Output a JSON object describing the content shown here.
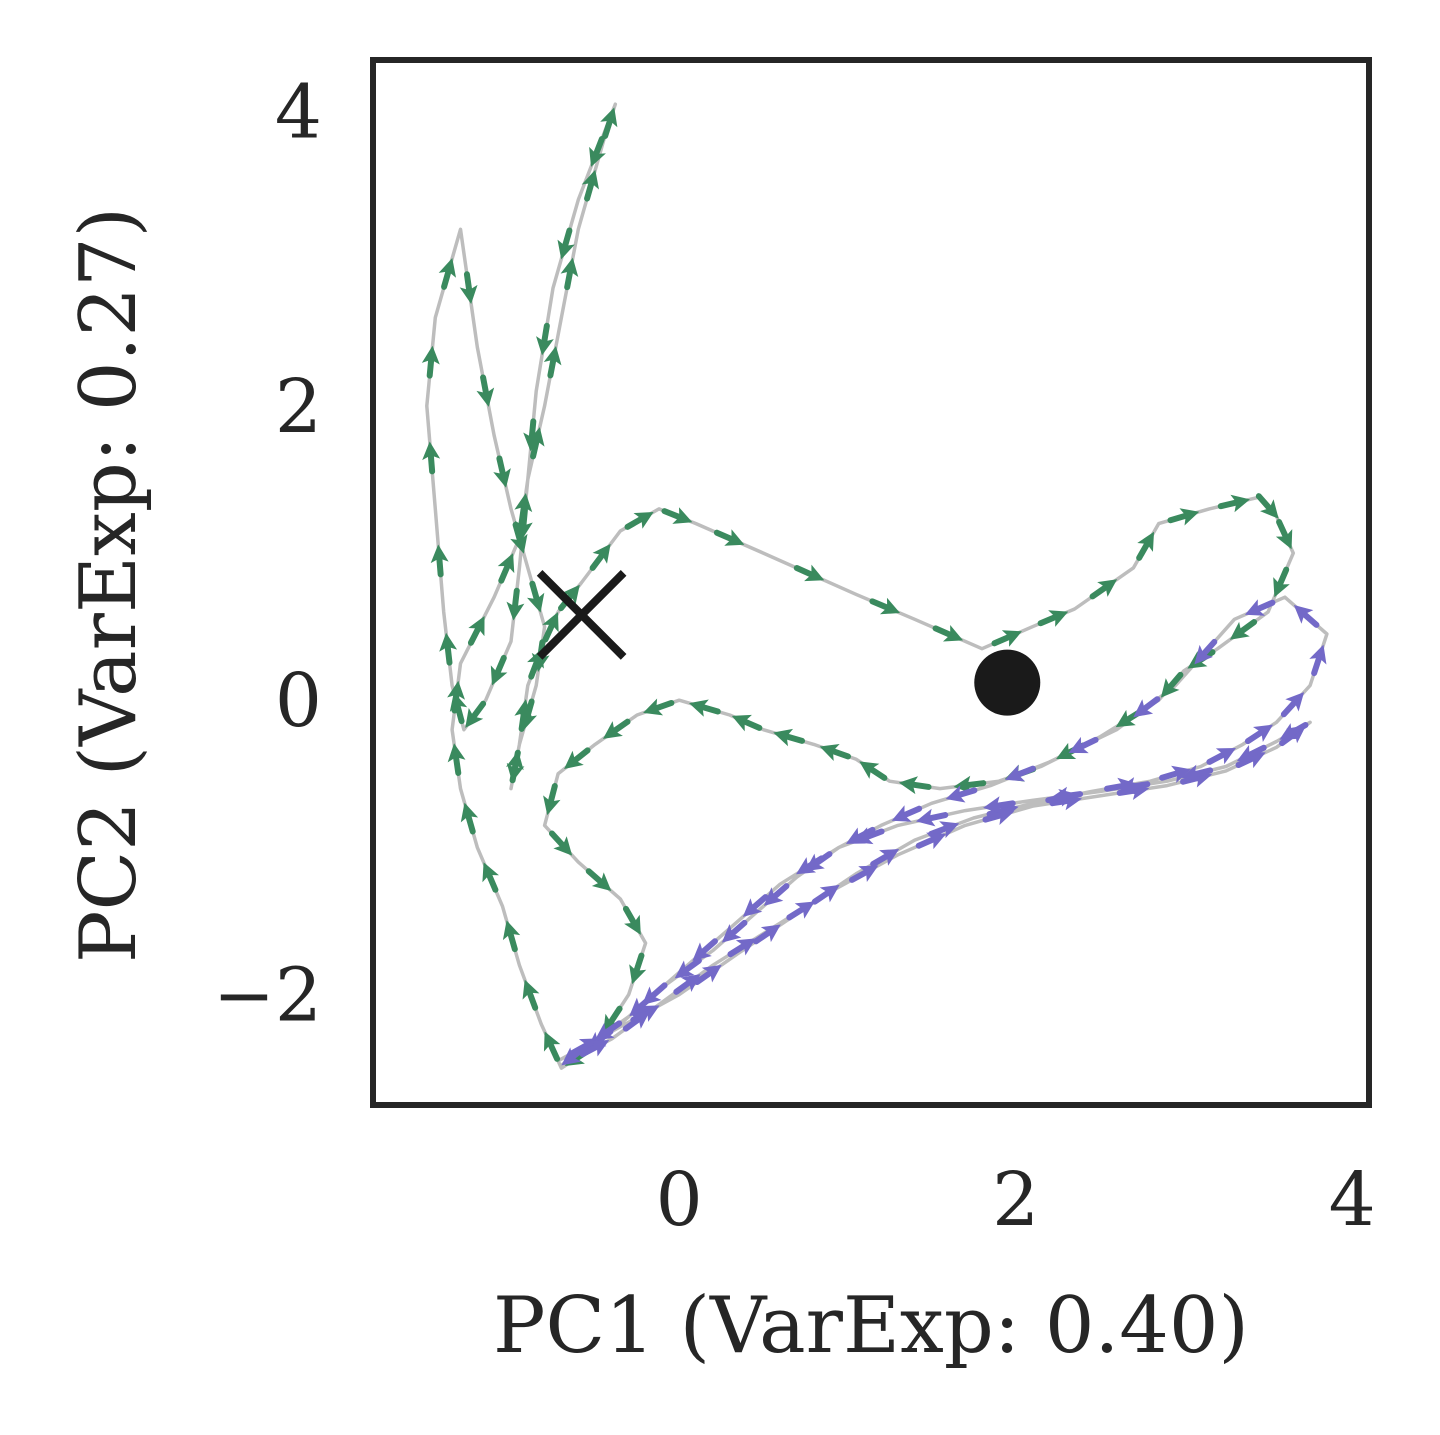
{
  "chart_data": {
    "type": "line",
    "title": "",
    "xlabel": "PC1 (VarExp: 0.40)",
    "ylabel": "PC2 (VarExp: 0.27)",
    "xlim": [
      -1.82,
      4.1
    ],
    "ylim": [
      -2.75,
      4.35
    ],
    "xticks": [
      {
        "value": 0,
        "label": "0"
      },
      {
        "value": 2,
        "label": "2"
      },
      {
        "value": 4,
        "label": "4"
      }
    ],
    "yticks": [
      {
        "value": -2,
        "label": "−2"
      },
      {
        "value": 0,
        "label": "0"
      },
      {
        "value": 2,
        "label": "2"
      },
      {
        "value": 4,
        "label": "4"
      }
    ],
    "grid": false,
    "colors": {
      "trajectory_line": "#bdbdbd",
      "green_arrows": "#3a8a5e",
      "purple_arrows": "#7369c8",
      "markers": "#1a1a1a",
      "frame": "#262626"
    },
    "series": [
      {
        "color": "green",
        "x": [
          -0.72,
          -0.58,
          -0.35,
          -0.12,
          0.1,
          0.5,
          1.05,
          1.4,
          1.8,
          2.1,
          2.35,
          2.7,
          2.85,
          3.15,
          3.45,
          3.55,
          3.65,
          3.5,
          3.2,
          3.0,
          2.85,
          2.5,
          2.15,
          1.9,
          1.55,
          1.25,
          1.05,
          0.8,
          0.5,
          0.3,
          0.0,
          -0.25,
          -0.5,
          -0.72,
          -0.8,
          -0.6,
          -0.35,
          -0.2,
          -0.3,
          -0.5,
          -0.7,
          -0.82,
          -0.95,
          -1.05,
          -1.2,
          -1.3,
          -1.35,
          -1.3,
          -1.1,
          -0.95,
          -0.9,
          -0.8,
          -0.7,
          -0.6,
          -0.45,
          -0.38,
          -0.6,
          -0.75,
          -0.85,
          -0.9,
          -0.95,
          -1.0,
          -1.15,
          -1.28,
          -1.35,
          -1.4,
          -1.45,
          -1.5,
          -1.45,
          -1.3,
          -1.2,
          -1.1,
          -1.0,
          -0.9,
          -0.8,
          -0.85,
          -0.95,
          -1.0,
          -0.95,
          -0.9,
          -0.8,
          -0.72
        ],
        "y": [
          0.6,
          0.8,
          1.15,
          1.3,
          1.2,
          1.0,
          0.72,
          0.55,
          0.35,
          0.5,
          0.62,
          0.9,
          1.2,
          1.3,
          1.38,
          1.25,
          1.0,
          0.6,
          0.35,
          0.2,
          0.0,
          -0.25,
          -0.45,
          -0.55,
          -0.6,
          -0.55,
          -0.4,
          -0.3,
          -0.2,
          -0.1,
          0.0,
          -0.1,
          -0.3,
          -0.5,
          -0.85,
          -1.1,
          -1.35,
          -1.65,
          -2.0,
          -2.35,
          -2.5,
          -2.2,
          -1.8,
          -1.4,
          -1.0,
          -0.6,
          -0.2,
          0.25,
          0.7,
          1.1,
          1.5,
          2.0,
          2.6,
          3.2,
          3.8,
          4.05,
          3.4,
          2.8,
          2.1,
          1.5,
          0.9,
          0.4,
          0.0,
          -0.2,
          0.1,
          0.6,
          1.3,
          2.0,
          2.6,
          3.2,
          2.4,
          1.8,
          1.3,
          0.9,
          0.5,
          0.1,
          -0.3,
          -0.6,
          -0.3,
          0.1,
          0.4,
          0.6
        ]
      },
      {
        "color": "purple",
        "x": [
          -0.72,
          -0.4,
          0.0,
          0.35,
          0.7,
          1.05,
          1.4,
          1.75,
          2.1,
          2.45,
          2.8,
          3.1,
          3.35,
          3.55,
          3.75,
          3.85,
          3.6,
          3.3,
          2.95,
          2.6,
          2.2,
          1.85,
          1.5,
          1.2,
          0.95,
          0.7,
          0.45,
          0.2,
          -0.1,
          -0.35,
          -0.6,
          -0.4,
          -0.1,
          0.2,
          0.55,
          0.9,
          1.3,
          1.7,
          2.1,
          2.5,
          2.9,
          3.25,
          3.55,
          3.75,
          3.55,
          3.25,
          2.9,
          2.5,
          2.1,
          1.7,
          1.3,
          0.95,
          0.6,
          0.3,
          0.0,
          -0.3,
          -0.55,
          -0.7
        ],
        "y": [
          -2.45,
          -2.25,
          -2.0,
          -1.72,
          -1.45,
          -1.18,
          -0.95,
          -0.8,
          -0.7,
          -0.62,
          -0.55,
          -0.45,
          -0.3,
          -0.15,
          0.1,
          0.45,
          0.7,
          0.55,
          0.1,
          -0.2,
          -0.42,
          -0.58,
          -0.7,
          -0.85,
          -1.0,
          -1.2,
          -1.45,
          -1.7,
          -1.95,
          -2.2,
          -2.42,
          -2.3,
          -2.05,
          -1.8,
          -1.55,
          -1.3,
          -1.05,
          -0.85,
          -0.72,
          -0.65,
          -0.58,
          -0.48,
          -0.32,
          -0.15,
          -0.28,
          -0.45,
          -0.55,
          -0.62,
          -0.68,
          -0.75,
          -0.85,
          -1.0,
          -1.25,
          -1.55,
          -1.85,
          -2.15,
          -2.35,
          -2.48
        ]
      }
    ],
    "markers": [
      {
        "shape": "x",
        "x": -0.58,
        "y": 0.58
      },
      {
        "shape": "circle",
        "x": 1.95,
        "y": 0.12
      }
    ]
  }
}
